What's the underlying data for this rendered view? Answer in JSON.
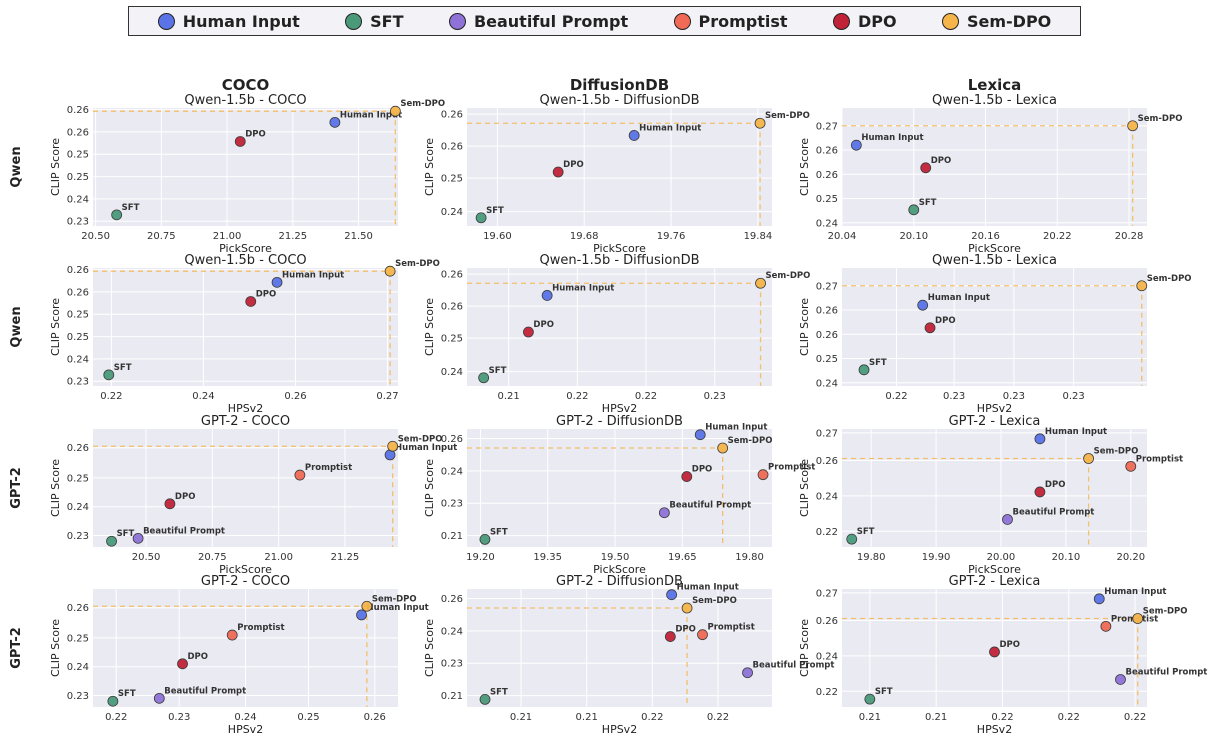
{
  "legend": [
    {
      "name": "Human Input",
      "color": "#5a74e8"
    },
    {
      "name": "SFT",
      "color": "#4a9a7a"
    },
    {
      "name": "Beautiful Prompt",
      "color": "#8e72d8"
    },
    {
      "name": "Promptist",
      "color": "#f06a55"
    },
    {
      "name": "DPO",
      "color": "#c02338"
    },
    {
      "name": "Sem-DPO",
      "color": "#f5b54a"
    }
  ],
  "columns": [
    "COCO",
    "DiffusionDB",
    "Lexica"
  ],
  "rows": [
    "Qwen",
    "Qwen",
    "GPT-2",
    "GPT-2"
  ],
  "chart_data": [
    {
      "type": "scatter",
      "title": "Qwen-1.5b - COCO",
      "xlabel": "PickScore",
      "ylabel": "CLIP Score",
      "xlim": [
        20.49,
        21.65
      ],
      "ylim": [
        0.2305,
        0.2675
      ],
      "xticks": [
        "20.50",
        "20.75",
        "21.00",
        "21.25",
        "21.50"
      ],
      "xtick_values": [
        20.5,
        20.75,
        21.0,
        21.25,
        21.5
      ],
      "yticks": [
        "0.23",
        "0.24",
        "0.25",
        "0.25",
        "0.26",
        "0.26"
      ],
      "ytick_values": [
        0.232,
        0.239,
        0.246,
        0.253,
        0.26,
        0.267
      ],
      "points": [
        {
          "name": "SFT",
          "x": 20.58,
          "y": 0.234
        },
        {
          "name": "DPO",
          "x": 21.05,
          "y": 0.257
        },
        {
          "name": "Human Input",
          "x": 21.41,
          "y": 0.263
        },
        {
          "name": "Sem-DPO",
          "x": 21.64,
          "y": 0.2665
        }
      ],
      "ref_point": "Sem-DPO"
    },
    {
      "type": "scatter",
      "title": "Qwen-1.5b - DiffusionDB",
      "xlabel": "PickScore",
      "ylabel": "CLIP Score",
      "xlim": [
        19.572,
        19.853
      ],
      "ylim": [
        0.2328,
        0.2715
      ],
      "xticks": [
        "19.60",
        "19.68",
        "19.76",
        "19.84"
      ],
      "xtick_values": [
        19.6,
        19.68,
        19.76,
        19.84
      ],
      "yticks": [
        "0.24",
        "0.25",
        "0.26",
        "0.26"
      ],
      "ytick_values": [
        0.2375,
        0.2485,
        0.259,
        0.2695
      ],
      "points": [
        {
          "name": "SFT",
          "x": 19.585,
          "y": 0.2355
        },
        {
          "name": "DPO",
          "x": 19.656,
          "y": 0.2505
        },
        {
          "name": "Human Input",
          "x": 19.726,
          "y": 0.2625
        },
        {
          "name": "Sem-DPO",
          "x": 19.842,
          "y": 0.2665
        }
      ],
      "ref_point": "Sem-DPO"
    },
    {
      "type": "scatter",
      "title": "Qwen-1.5b - Lexica",
      "xlabel": "PickScore",
      "ylabel": "CLIP Score",
      "xlim": [
        20.04,
        20.295
      ],
      "ylim": [
        0.2375,
        0.274
      ],
      "xticks": [
        "20.04",
        "20.10",
        "20.16",
        "20.22",
        "20.28"
      ],
      "xtick_values": [
        20.04,
        20.1,
        20.16,
        20.22,
        20.28
      ],
      "yticks": [
        "0.24",
        "0.25",
        "0.26",
        "0.26",
        "0.27"
      ],
      "ytick_values": [
        0.2385,
        0.246,
        0.2535,
        0.261,
        0.2685
      ],
      "points": [
        {
          "name": "SFT",
          "x": 20.1,
          "y": 0.2425
        },
        {
          "name": "DPO",
          "x": 20.11,
          "y": 0.2555
        },
        {
          "name": "Human Input",
          "x": 20.052,
          "y": 0.2625
        },
        {
          "name": "Sem-DPO",
          "x": 20.283,
          "y": 0.2685
        }
      ],
      "ref_point": "Sem-DPO"
    },
    {
      "type": "scatter",
      "title": "Qwen-1.5b - COCO",
      "xlabel": "HPSv2",
      "ylabel": "CLIP Score",
      "xlim": [
        0.2165,
        0.2745
      ],
      "ylim": [
        0.2305,
        0.2675
      ],
      "xticks": [
        "0.22",
        "0.24",
        "0.26",
        "0.27"
      ],
      "xtick_values": [
        0.22,
        0.2375,
        0.255,
        0.2725
      ],
      "yticks": [
        "0.23",
        "0.24",
        "0.25",
        "0.25",
        "0.26",
        "0.26"
      ],
      "ytick_values": [
        0.232,
        0.239,
        0.246,
        0.253,
        0.26,
        0.267
      ],
      "points": [
        {
          "name": "SFT",
          "x": 0.2195,
          "y": 0.234
        },
        {
          "name": "DPO",
          "x": 0.2465,
          "y": 0.257
        },
        {
          "name": "Human Input",
          "x": 0.2515,
          "y": 0.263
        },
        {
          "name": "Sem-DPO",
          "x": 0.273,
          "y": 0.2665
        }
      ],
      "ref_point": "Sem-DPO"
    },
    {
      "type": "scatter",
      "title": "Qwen-1.5b - DiffusionDB",
      "xlabel": "HPSv2",
      "ylabel": "CLIP Score",
      "xlim": [
        0.2061,
        0.2354
      ],
      "ylim": [
        0.2328,
        0.2715
      ],
      "xticks": [
        "0.21",
        "0.22",
        "0.22",
        "0.23"
      ],
      "xtick_values": [
        0.2101,
        0.2167,
        0.2233,
        0.2299
      ],
      "yticks": [
        "0.24",
        "0.25",
        "0.26",
        "0.26"
      ],
      "ytick_values": [
        0.2375,
        0.2485,
        0.259,
        0.2695
      ],
      "points": [
        {
          "name": "SFT",
          "x": 0.2077,
          "y": 0.2355
        },
        {
          "name": "DPO",
          "x": 0.212,
          "y": 0.2505
        },
        {
          "name": "Human Input",
          "x": 0.2138,
          "y": 0.2625
        },
        {
          "name": "Sem-DPO",
          "x": 0.2343,
          "y": 0.2665
        }
      ],
      "ref_point": "Sem-DPO"
    },
    {
      "type": "scatter",
      "title": "Qwen-1.5b - Lexica",
      "xlabel": "HPSv2",
      "ylabel": "CLIP Score",
      "xlim": [
        0.2117,
        0.2408
      ],
      "ylim": [
        0.2375,
        0.274
      ],
      "xticks": [
        "0.22",
        "0.23",
        "0.23",
        "0.23"
      ],
      "xtick_values": [
        0.2169,
        0.2224,
        0.2281,
        0.2338
      ],
      "yticks": [
        "0.24",
        "0.25",
        "0.26",
        "0.26",
        "0.27"
      ],
      "ytick_values": [
        0.2385,
        0.246,
        0.2535,
        0.261,
        0.2685
      ],
      "points": [
        {
          "name": "SFT",
          "x": 0.2138,
          "y": 0.2425
        },
        {
          "name": "DPO",
          "x": 0.2201,
          "y": 0.2555
        },
        {
          "name": "Human Input",
          "x": 0.2194,
          "y": 0.2625
        },
        {
          "name": "Sem-DPO",
          "x": 0.2403,
          "y": 0.2685
        }
      ],
      "ref_point": "Sem-DPO"
    },
    {
      "type": "scatter",
      "title": "GPT-2 - COCO",
      "xlabel": "PickScore",
      "ylabel": "CLIP Score",
      "xlim": [
        20.3,
        21.45
      ],
      "ylim": [
        0.2255,
        0.2665
      ],
      "xticks": [
        "20.50",
        "20.75",
        "21.00",
        "21.25"
      ],
      "xtick_values": [
        20.5,
        20.75,
        21.0,
        21.25
      ],
      "yticks": [
        "0.23",
        "0.24",
        "0.25",
        "0.26"
      ],
      "ytick_values": [
        0.2295,
        0.2395,
        0.2495,
        0.26
      ],
      "points": [
        {
          "name": "SFT",
          "x": 20.37,
          "y": 0.2275
        },
        {
          "name": "Beautiful Prompt",
          "x": 20.47,
          "y": 0.2285
        },
        {
          "name": "DPO",
          "x": 20.59,
          "y": 0.2405
        },
        {
          "name": "Promptist",
          "x": 21.08,
          "y": 0.2505
        },
        {
          "name": "Human Input",
          "x": 21.42,
          "y": 0.2575
        },
        {
          "name": "Sem-DPO",
          "x": 21.43,
          "y": 0.2605
        }
      ],
      "ref_point": "Sem-DPO"
    },
    {
      "type": "scatter",
      "title": "GPT-2 - DiffusionDB",
      "xlabel": "PickScore",
      "ylabel": "CLIP Score",
      "xlim": [
        19.17,
        19.85
      ],
      "ylim": [
        0.2045,
        0.2665
      ],
      "xticks": [
        "19.20",
        "19.35",
        "19.50",
        "19.65",
        "19.80"
      ],
      "xtick_values": [
        19.2,
        19.35,
        19.5,
        19.65,
        19.8
      ],
      "yticks": [
        "0.21",
        "0.23",
        "0.24",
        "0.26"
      ],
      "ytick_values": [
        0.2105,
        0.2275,
        0.2445,
        0.2615
      ],
      "points": [
        {
          "name": "SFT",
          "x": 19.21,
          "y": 0.2085
        },
        {
          "name": "Beautiful Prompt",
          "x": 19.61,
          "y": 0.2225
        },
        {
          "name": "DPO",
          "x": 19.66,
          "y": 0.2415
        },
        {
          "name": "Promptist",
          "x": 19.83,
          "y": 0.2425
        },
        {
          "name": "Human Input",
          "x": 19.69,
          "y": 0.2635
        },
        {
          "name": "Sem-DPO",
          "x": 19.74,
          "y": 0.2565
        }
      ],
      "ref_point": "Sem-DPO"
    },
    {
      "type": "scatter",
      "title": "GPT-2 - Lexica",
      "xlabel": "PickScore",
      "ylabel": "CLIP Score",
      "xlim": [
        19.755,
        20.225
      ],
      "ylim": [
        0.2115,
        0.2715
      ],
      "xticks": [
        "19.80",
        "19.90",
        "20.00",
        "20.10",
        "20.20"
      ],
      "xtick_values": [
        19.8,
        19.9,
        20.0,
        20.1,
        20.2
      ],
      "yticks": [
        "0.22",
        "0.24",
        "0.26",
        "0.27"
      ],
      "ytick_values": [
        0.2195,
        0.2375,
        0.2555,
        0.2695
      ],
      "points": [
        {
          "name": "SFT",
          "x": 19.77,
          "y": 0.2155
        },
        {
          "name": "Beautiful Prompt",
          "x": 20.01,
          "y": 0.2255
        },
        {
          "name": "DPO",
          "x": 20.06,
          "y": 0.2395
        },
        {
          "name": "Promptist",
          "x": 20.2,
          "y": 0.2525
        },
        {
          "name": "Human Input",
          "x": 20.06,
          "y": 0.2665
        },
        {
          "name": "Sem-DPO",
          "x": 20.135,
          "y": 0.2565
        }
      ],
      "ref_point": "Sem-DPO"
    },
    {
      "type": "scatter",
      "title": "GPT-2 - COCO",
      "xlabel": "HPSv2",
      "ylabel": "CLIP Score",
      "xlim": [
        0.2165,
        0.2625
      ],
      "ylim": [
        0.2255,
        0.2665
      ],
      "xticks": [
        "0.22",
        "0.23",
        "0.24",
        "0.25",
        "0.26"
      ],
      "xtick_values": [
        0.22,
        0.2295,
        0.2395,
        0.249,
        0.259
      ],
      "yticks": [
        "0.23",
        "0.24",
        "0.25",
        "0.26"
      ],
      "ytick_values": [
        0.2295,
        0.2395,
        0.2495,
        0.26
      ],
      "points": [
        {
          "name": "SFT",
          "x": 0.2195,
          "y": 0.2275
        },
        {
          "name": "Beautiful Prompt",
          "x": 0.2265,
          "y": 0.2285
        },
        {
          "name": "DPO",
          "x": 0.23,
          "y": 0.2405
        },
        {
          "name": "Promptist",
          "x": 0.2375,
          "y": 0.2505
        },
        {
          "name": "Human Input",
          "x": 0.257,
          "y": 0.2575
        },
        {
          "name": "Sem-DPO",
          "x": 0.2578,
          "y": 0.2605
        }
      ],
      "ref_point": "Sem-DPO"
    },
    {
      "type": "scatter",
      "title": "GPT-2 - DiffusionDB",
      "xlabel": "HPSv2",
      "ylabel": "CLIP Score",
      "xlim": [
        0.2075,
        0.2312
      ],
      "ylim": [
        0.2045,
        0.2665
      ],
      "xticks": [
        "0.21",
        "0.21",
        "0.22",
        "0.22"
      ],
      "xtick_values": [
        0.2117,
        0.2168,
        0.2219,
        0.227
      ],
      "yticks": [
        "0.21",
        "0.23",
        "0.24",
        "0.26"
      ],
      "ytick_values": [
        0.2105,
        0.2275,
        0.2445,
        0.2615
      ],
      "points": [
        {
          "name": "SFT",
          "x": 0.2089,
          "y": 0.2085
        },
        {
          "name": "Beautiful Prompt",
          "x": 0.2293,
          "y": 0.2225
        },
        {
          "name": "DPO",
          "x": 0.2233,
          "y": 0.2415
        },
        {
          "name": "Promptist",
          "x": 0.2258,
          "y": 0.2425
        },
        {
          "name": "Human Input",
          "x": 0.2234,
          "y": 0.2635
        },
        {
          "name": "Sem-DPO",
          "x": 0.2246,
          "y": 0.2565
        }
      ],
      "ref_point": "Sem-DPO"
    },
    {
      "type": "scatter",
      "title": "GPT-2 - Lexica",
      "xlabel": "HPSv2",
      "ylabel": "CLIP Score",
      "xlim": [
        0.2078,
        0.2308
      ],
      "ylim": [
        0.2115,
        0.2715
      ],
      "xticks": [
        "0.21",
        "0.21",
        "0.22",
        "0.22",
        "0.22"
      ],
      "xtick_values": [
        0.2099,
        0.2149,
        0.2199,
        0.2249,
        0.2299
      ],
      "yticks": [
        "0.22",
        "0.24",
        "0.26",
        "0.27"
      ],
      "ytick_values": [
        0.2195,
        0.2375,
        0.2555,
        0.2695
      ],
      "points": [
        {
          "name": "SFT",
          "x": 0.2099,
          "y": 0.2155
        },
        {
          "name": "Beautiful Prompt",
          "x": 0.2288,
          "y": 0.2255
        },
        {
          "name": "DPO",
          "x": 0.2193,
          "y": 0.2395
        },
        {
          "name": "Promptist",
          "x": 0.2277,
          "y": 0.2525
        },
        {
          "name": "Human Input",
          "x": 0.2272,
          "y": 0.2665
        },
        {
          "name": "Sem-DPO",
          "x": 0.2301,
          "y": 0.2565
        }
      ],
      "ref_point": "Sem-DPO"
    }
  ]
}
